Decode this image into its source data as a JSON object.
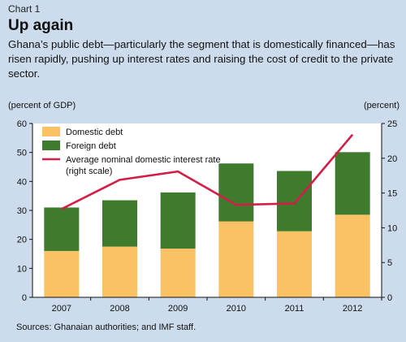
{
  "header": {
    "label": "Chart 1",
    "title": "Up again",
    "subtitle": "Ghana’s public debt—particularly the segment that is domestically financed—has risen rapidly, pushing up interest rates and raising the cost of credit to the private sector."
  },
  "source": "Sources: Ghanaian authorities; and IMF staff.",
  "colors": {
    "domestic": "#fbc265",
    "foreign": "#3e7b2c",
    "rate": "#d11f47",
    "background": "#ccdcec",
    "plot": "#ffffff"
  },
  "chart_data": {
    "type": "bar",
    "stacked": true,
    "categories": [
      "2007",
      "2008",
      "2009",
      "2010",
      "2011",
      "2012"
    ],
    "series": [
      {
        "name": "Domestic debt",
        "type": "bar",
        "axis": "left",
        "values": [
          16,
          17.5,
          16.8,
          26.2,
          22.8,
          28.5
        ]
      },
      {
        "name": "Foreign debt",
        "type": "bar",
        "axis": "left",
        "values": [
          15,
          16,
          19.4,
          20,
          20.8,
          21.6
        ]
      },
      {
        "name": "Average nominal domestic interest rate (right scale)",
        "type": "line",
        "axis": "right",
        "values": [
          12.7,
          16.9,
          18.1,
          13.3,
          13.5,
          23.4
        ]
      }
    ],
    "ylabel": "(percent of GDP)",
    "y2label": "(percent)",
    "ylim": [
      0,
      60
    ],
    "y2lim": [
      0,
      25
    ],
    "yticks": [
      0,
      10,
      20,
      30,
      40,
      50,
      60
    ],
    "y2ticks": [
      0,
      5,
      10,
      15,
      20,
      25
    ],
    "grid": false,
    "legend": "top-left"
  }
}
